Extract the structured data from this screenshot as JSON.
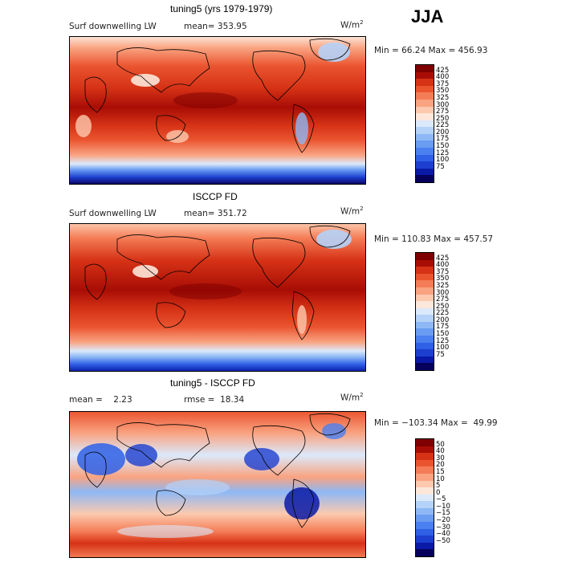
{
  "season": "JJA",
  "colors": {
    "abs_scale": [
      "#06005c",
      "#0a1aa6",
      "#1d3fd0",
      "#2f60e6",
      "#4a80f0",
      "#6a9cf2",
      "#8db8f5",
      "#b5d2f8",
      "#dbe9fb",
      "#fde7da",
      "#fcc9ae",
      "#f9a381",
      "#f47c56",
      "#ea5530",
      "#d63216",
      "#a80d05",
      "#7e0000"
    ],
    "diff_scale": [
      "#06005c",
      "#0a1aa6",
      "#1d3fd0",
      "#2f60e6",
      "#4a80f0",
      "#6a9cf2",
      "#8db8f5",
      "#b5d2f8",
      "#dbe9fb",
      "#fde7da",
      "#fcc9ae",
      "#f9a381",
      "#f47c56",
      "#ea5530",
      "#d63216",
      "#a80d05",
      "#7e0000"
    ],
    "land": "#000000"
  },
  "panels": [
    {
      "title": "tuning5 (yrs 1979-1979)",
      "variable": "Surf downwelling LW",
      "stat_text": "mean= 353.95",
      "units": "W/m",
      "units_sup": "2",
      "minmax": "Min =  66.24 Max = 456.93",
      "colorbar_levels": [
        "425",
        "400",
        "375",
        "350",
        "325",
        "300",
        "275",
        "250",
        "225",
        "200",
        "175",
        "150",
        "125",
        "100",
        "75"
      ]
    },
    {
      "title": "ISCCP FD",
      "variable": "Surf downwelling LW",
      "stat_text": "mean= 351.72",
      "units": "W/m",
      "units_sup": "2",
      "minmax": "Min = 110.83 Max = 457.57",
      "colorbar_levels": [
        "425",
        "400",
        "375",
        "350",
        "325",
        "300",
        "275",
        "250",
        "225",
        "200",
        "175",
        "150",
        "125",
        "100",
        "75"
      ]
    },
    {
      "title": "tuning5 - ISCCP FD",
      "mean_text": "mean =    2.23",
      "rmse_text": "rmse =  18.34",
      "units": "W/m",
      "units_sup": "2",
      "minmax": "Min = −103.34 Max =  49.99",
      "colorbar_levels": [
        "50",
        "40",
        "30",
        "20",
        "15",
        "10",
        "5",
        "0",
        "−5",
        "−10",
        "−15",
        "−20",
        "−30",
        "−40",
        "−50"
      ]
    }
  ],
  "chart_data": [
    {
      "type": "heatmap",
      "title": "tuning5 (yrs 1979-1979)",
      "field": "Surf downwelling LW",
      "units": "W/m2",
      "mean": 353.95,
      "min": 66.24,
      "max": 456.93,
      "contour_levels": [
        75,
        100,
        125,
        150,
        175,
        200,
        225,
        250,
        275,
        300,
        325,
        350,
        375,
        400,
        425
      ]
    },
    {
      "type": "heatmap",
      "title": "ISCCP FD",
      "field": "Surf downwelling LW",
      "units": "W/m2",
      "mean": 351.72,
      "min": 110.83,
      "max": 457.57,
      "contour_levels": [
        75,
        100,
        125,
        150,
        175,
        200,
        225,
        250,
        275,
        300,
        325,
        350,
        375,
        400,
        425
      ]
    },
    {
      "type": "heatmap",
      "title": "tuning5 - ISCCP FD",
      "units": "W/m2",
      "mean": 2.23,
      "rmse": 18.34,
      "min": -103.34,
      "max": 49.99,
      "contour_levels": [
        -50,
        -40,
        -30,
        -20,
        -15,
        -10,
        -5,
        0,
        5,
        10,
        15,
        20,
        30,
        40,
        50
      ]
    }
  ]
}
